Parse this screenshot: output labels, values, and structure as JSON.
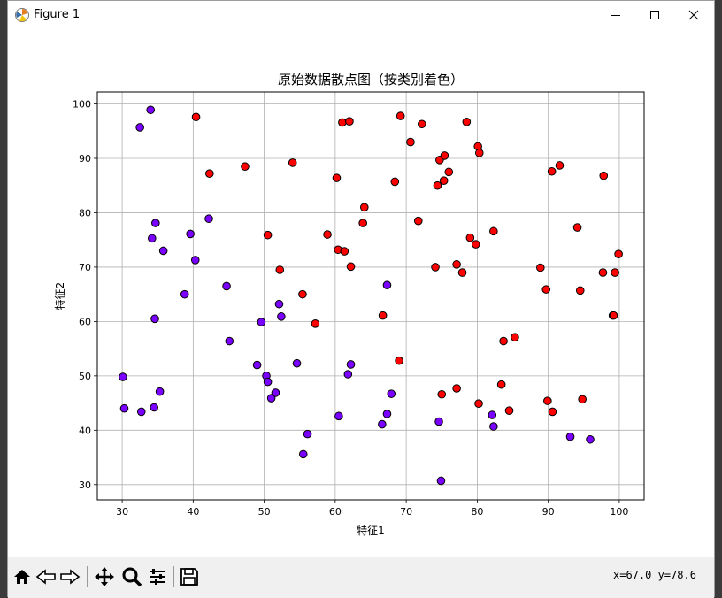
{
  "window": {
    "title": "Figure 1"
  },
  "toolbar": {
    "buttons": [
      "home-icon",
      "back-icon",
      "forward-icon",
      "pan-icon",
      "zoom-icon",
      "configure-subplots-icon",
      "save-icon"
    ],
    "coord_readout": "x=67.0  y=78.6"
  },
  "colors": {
    "class_0": "#7a00ff",
    "class_1": "#ff0000",
    "edge": "#000000",
    "grid": "#b0b0b0"
  },
  "chart_data": {
    "type": "scatter",
    "title": "原始数据散点图（按类别着色）",
    "xlabel": "特征1",
    "ylabel": "特征2",
    "xlim": [
      26.5,
      103.5
    ],
    "ylim": [
      27.2,
      102.2
    ],
    "xticks": [
      30,
      40,
      50,
      60,
      70,
      80,
      90,
      100
    ],
    "yticks": [
      30,
      40,
      50,
      60,
      70,
      80,
      90,
      100
    ],
    "grid": true,
    "series": [
      {
        "class": 0,
        "color": "#7a00ff",
        "x": [
          30.1,
          30.3,
          32.5,
          32.7,
          34.0,
          34.2,
          34.5,
          34.6,
          34.7,
          35.3,
          35.8,
          38.8,
          39.6,
          40.3,
          42.2,
          44.7,
          45.1,
          49.0,
          49.6,
          50.3,
          50.5,
          51.0,
          51.6,
          52.1,
          52.4,
          54.6,
          55.5,
          56.1,
          60.5,
          61.8,
          62.2,
          66.6,
          67.3,
          67.3,
          67.9,
          74.6,
          74.9,
          82.1,
          82.3,
          93.1,
          95.9
        ],
        "y": [
          49.8,
          44.0,
          95.7,
          43.4,
          98.9,
          75.3,
          44.2,
          60.5,
          78.1,
          47.1,
          73.0,
          65.0,
          76.1,
          71.3,
          78.9,
          66.5,
          56.4,
          52.0,
          59.9,
          50.0,
          48.9,
          45.9,
          46.9,
          63.2,
          60.9,
          52.3,
          35.6,
          39.3,
          42.6,
          50.3,
          52.1,
          41.1,
          43.0,
          66.7,
          46.7,
          41.6,
          30.7,
          42.8,
          40.7,
          38.8,
          38.3
        ]
      },
      {
        "class": 1,
        "color": "#ff0000",
        "x": [
          40.4,
          42.3,
          47.3,
          50.5,
          52.2,
          54.0,
          55.4,
          57.2,
          58.9,
          60.2,
          60.4,
          61.0,
          61.3,
          62.0,
          62.2,
          63.9,
          64.1,
          66.7,
          68.4,
          69.0,
          69.2,
          70.6,
          71.7,
          72.2,
          74.1,
          74.4,
          74.7,
          75.0,
          75.3,
          75.4,
          76.0,
          77.1,
          77.1,
          77.9,
          78.5,
          79.0,
          79.8,
          80.1,
          80.2,
          80.3,
          82.3,
          83.4,
          83.7,
          84.5,
          85.3,
          88.9,
          89.7,
          89.9,
          90.5,
          90.6,
          91.6,
          94.1,
          94.5,
          94.8,
          97.7,
          97.8,
          99.1,
          99.2,
          99.4,
          99.9
        ],
        "y": [
          97.6,
          87.2,
          88.5,
          75.9,
          69.5,
          89.2,
          65.0,
          59.6,
          76.0,
          86.4,
          73.2,
          96.6,
          72.9,
          96.8,
          70.1,
          78.1,
          81.0,
          61.1,
          85.7,
          52.8,
          97.8,
          93.0,
          78.5,
          96.3,
          70.0,
          85.0,
          89.7,
          46.6,
          85.9,
          90.5,
          87.5,
          70.5,
          47.7,
          69.0,
          96.7,
          75.4,
          74.2,
          92.2,
          44.9,
          91.0,
          76.6,
          48.4,
          56.4,
          43.6,
          57.1,
          69.9,
          65.9,
          45.4,
          87.6,
          43.4,
          88.7,
          77.3,
          65.7,
          45.7,
          69.0,
          86.8,
          61.1,
          61.1,
          69.0,
          72.4
        ]
      }
    ]
  }
}
